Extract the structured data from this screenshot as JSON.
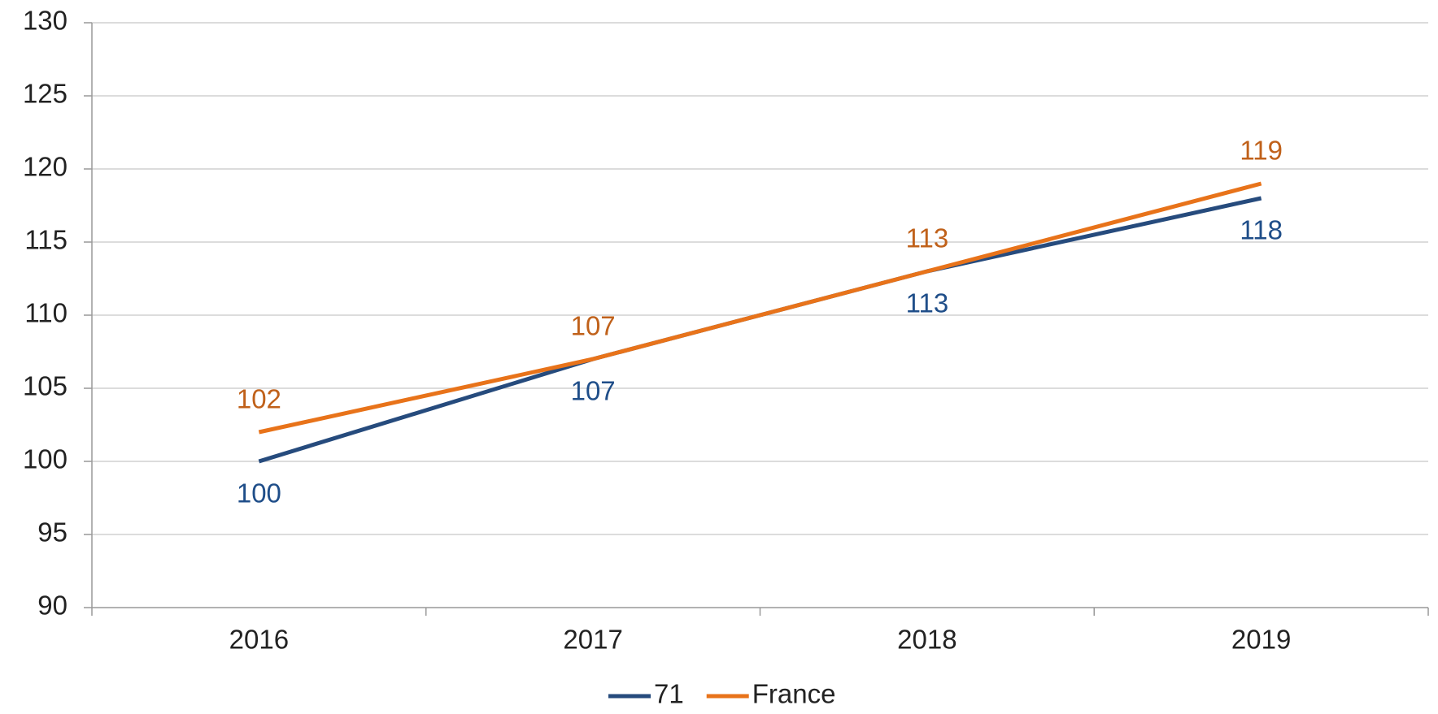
{
  "chart_data": {
    "type": "line",
    "categories": [
      "2016",
      "2017",
      "2018",
      "2019"
    ],
    "series": [
      {
        "name": "71",
        "color": "#264b7d",
        "label_color": "#1f4e89",
        "label_position": "below",
        "values": [
          100,
          107,
          113,
          118
        ]
      },
      {
        "name": "France",
        "color": "#e8731a",
        "label_color": "#c0611a",
        "label_position": "above",
        "values": [
          102,
          107,
          113,
          119
        ]
      }
    ],
    "ylim": [
      90,
      130
    ],
    "yticks": [
      90,
      95,
      100,
      105,
      110,
      115,
      120,
      125,
      130
    ],
    "grid": true,
    "legend": "bottom"
  }
}
